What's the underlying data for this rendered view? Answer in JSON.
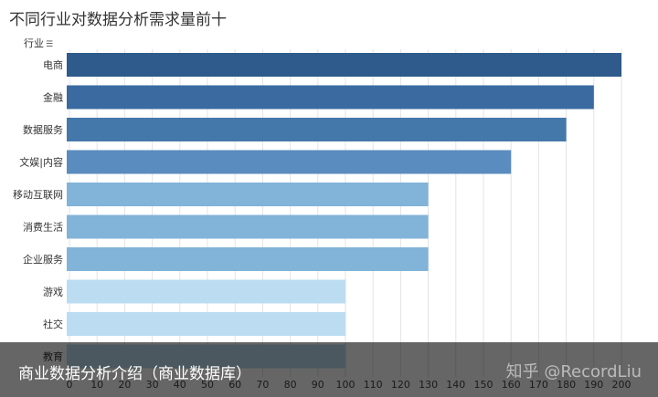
{
  "chart_data": {
    "type": "bar",
    "orientation": "horizontal",
    "title": "不同行业对数据分析需求量前十",
    "ylabel": "行业",
    "categories": [
      "电商",
      "金融",
      "数据服务",
      "文娱|内容",
      "移动互联网",
      "消费生活",
      "企业服务",
      "游戏",
      "社交",
      "教育"
    ],
    "values": [
      200,
      190,
      180,
      160,
      130,
      130,
      130,
      100,
      100,
      100
    ],
    "bar_colors": [
      "#2e5b8b",
      "#3a6aa0",
      "#4478ab",
      "#5a8cbf",
      "#82b3d9",
      "#82b3d9",
      "#82b3d9",
      "#bcdcf1",
      "#bcdcf1",
      "#bcdcf1"
    ],
    "xlim": [
      0,
      200
    ],
    "xticks": [
      0,
      10,
      20,
      30,
      40,
      50,
      60,
      70,
      80,
      90,
      100,
      110,
      120,
      130,
      140,
      150,
      160,
      170,
      180,
      190,
      200
    ],
    "grid": true
  },
  "overlay": {
    "caption": "商业数据分析介绍（商业数据库）",
    "watermark": "知乎 @RecordLiu"
  },
  "icons": {
    "sort": "sort-icon"
  }
}
